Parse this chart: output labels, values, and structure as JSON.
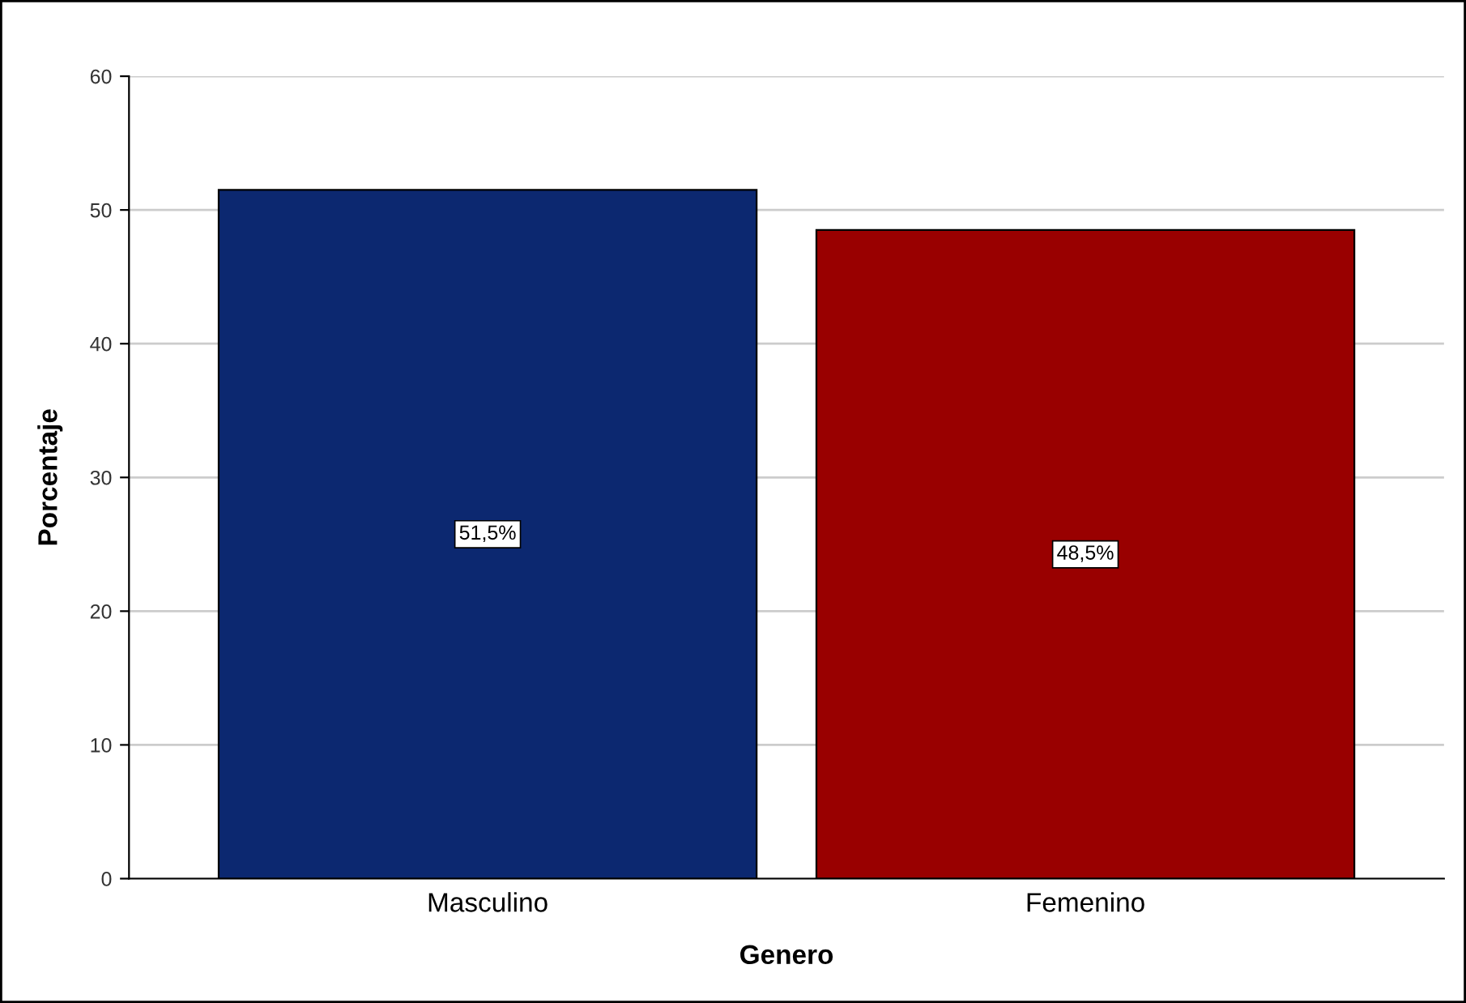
{
  "chart_data": {
    "type": "bar",
    "xlabel": "Genero",
    "ylabel": "Porcentaje",
    "categories": [
      "Masculino",
      "Femenino"
    ],
    "values": [
      51.5,
      48.5
    ],
    "colors": [
      "#0c2870",
      "#990000"
    ],
    "value_labels": [
      "51,5%",
      "48,5%"
    ],
    "ylim": [
      0,
      60
    ],
    "yticks": [
      0,
      10,
      20,
      30,
      40,
      50,
      60
    ],
    "grid": "y",
    "legend": false
  }
}
